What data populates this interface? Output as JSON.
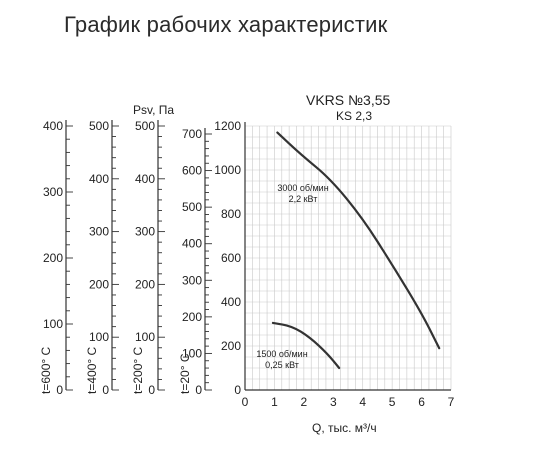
{
  "header": {
    "title": "График рабочих характеристик"
  },
  "chart_data": {
    "type": "line",
    "title": "VKRS №3,55",
    "subtitle": "KS 2,3",
    "xlabel": "Q, тыс. м³/ч",
    "ylabel": "Psv, Па",
    "xlim": [
      0,
      7
    ],
    "ylim": [
      0,
      1200
    ],
    "x_ticks": [
      "0",
      "1",
      "2",
      "3",
      "4",
      "5",
      "6",
      "7"
    ],
    "y_ticks": [
      "0",
      "200",
      "400",
      "600",
      "800",
      "1000",
      "1200"
    ],
    "grid": true,
    "series": [
      {
        "name": "3000 об/мин",
        "label_lines": [
          "3000 об/мин",
          "2,2 кВт"
        ],
        "color": "#333333",
        "points": [
          [
            1.1,
            1170
          ],
          [
            1.9,
            1070
          ],
          [
            2.9,
            960
          ],
          [
            4.0,
            780
          ],
          [
            5.0,
            570
          ],
          [
            6.0,
            350
          ],
          [
            6.6,
            190
          ]
        ]
      },
      {
        "name": "1500 об/мин",
        "label_lines": [
          "1500 об/мин",
          "0,25 кВт"
        ],
        "color": "#333333",
        "points": [
          [
            0.95,
            305
          ],
          [
            1.6,
            290
          ],
          [
            2.2,
            240
          ],
          [
            2.8,
            165
          ],
          [
            3.2,
            100
          ]
        ]
      }
    ],
    "secondary_axes": [
      {
        "temp_label": "t=20° C",
        "ticks": [
          "0",
          "100",
          "200",
          "300",
          "400",
          "500",
          "600",
          "700"
        ],
        "max": 700
      },
      {
        "temp_label": "t=200° C",
        "ticks": [
          "0",
          "100",
          "200",
          "300",
          "400",
          "500"
        ],
        "max": 500
      },
      {
        "temp_label": "t=400° C",
        "ticks": [
          "0",
          "100",
          "200",
          "300",
          "400",
          "500"
        ],
        "max": 500
      },
      {
        "temp_label": "t=600° C",
        "ticks": [
          "0",
          "100",
          "200",
          "300",
          "400"
        ],
        "max": 400
      }
    ]
  },
  "colors": {
    "grid": "#c9c9c9",
    "axis": "#333333",
    "curve": "#333333"
  }
}
